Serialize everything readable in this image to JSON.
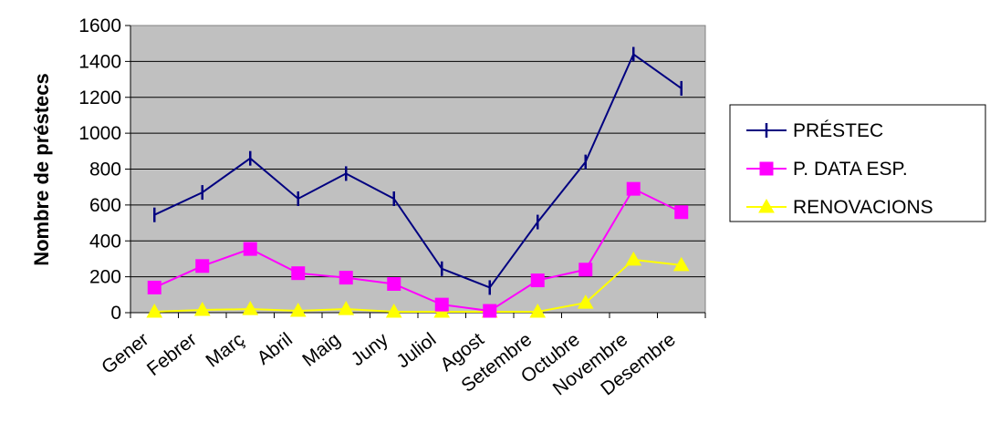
{
  "chart_data": {
    "type": "line",
    "title": "",
    "xlabel": "",
    "ylabel": "Nombre de préstecs",
    "ylim": [
      0,
      1600
    ],
    "yticks": [
      "0",
      "200",
      "400",
      "600",
      "800",
      "1000",
      "1200",
      "1400",
      "1600"
    ],
    "grid": true,
    "legend_position": "right",
    "plot_background": "#c0c0c0",
    "categories": [
      "Gener",
      "Febrer",
      "Març",
      "Abril",
      "Maig",
      "Juny",
      "Juliol",
      "Agost",
      "Setembre",
      "Octubre",
      "Novembre",
      "Desembre"
    ],
    "series": [
      {
        "name": "PRÉSTEC",
        "color": "#000080",
        "marker": "vertical-dash",
        "values": [
          545,
          670,
          860,
          635,
          775,
          635,
          245,
          140,
          505,
          840,
          1440,
          1250
        ]
      },
      {
        "name": "P. DATA ESP.",
        "color": "#ff00ff",
        "marker": "square",
        "values": [
          140,
          260,
          355,
          220,
          195,
          160,
          45,
          10,
          180,
          240,
          690,
          560
        ]
      },
      {
        "name": "RENOVACIONS",
        "color": "#ffff00",
        "marker": "triangle",
        "values": [
          5,
          15,
          20,
          10,
          20,
          5,
          5,
          5,
          5,
          55,
          295,
          265
        ]
      }
    ]
  }
}
